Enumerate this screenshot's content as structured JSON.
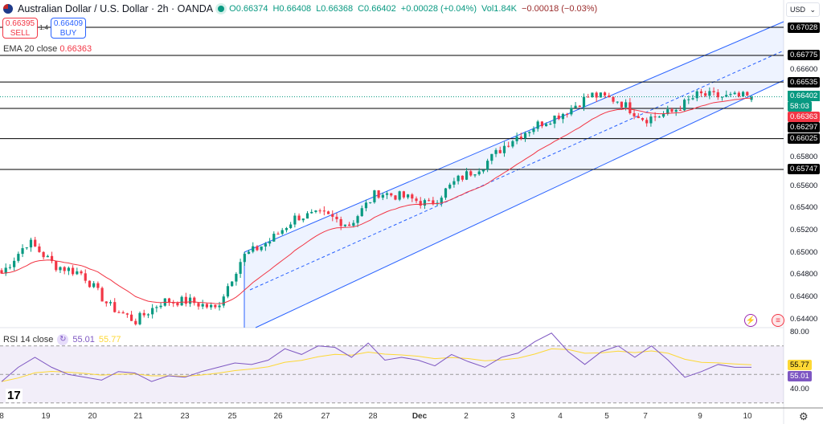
{
  "header": {
    "title": "Australian Dollar / U.S. Dollar · 2h · OANDA",
    "open": "O0.66374",
    "high": "H0.66408",
    "low": "L0.66368",
    "close": "C0.66402",
    "change": "+0.00028 (+0.04%)",
    "volume": "Vol1.84K",
    "vol_change": "−0.00018 (−0.03%)"
  },
  "trade": {
    "sell_price": "0.66395",
    "sell_label": "SELL",
    "spread": "1.4",
    "buy_price": "0.66409",
    "buy_label": "BUY"
  },
  "ema": {
    "label": "EMA 20 close",
    "value": "0.66363"
  },
  "rsi": {
    "label": "RSI 14 close",
    "value": "55.01",
    "ma_value": "55.77",
    "axis": [
      "80.00",
      "40.00"
    ]
  },
  "currency": "USD",
  "price_axis": [
    "0.66600",
    "0.65800",
    "0.65600",
    "0.65400",
    "0.65200",
    "0.65000",
    "0.64800",
    "0.64600",
    "0.64400"
  ],
  "level_labels": [
    "0.67028",
    "0.66775",
    "0.66535",
    "0.66297",
    "0.66025",
    "0.65747"
  ],
  "last_price": {
    "value": "0.66402",
    "countdown": "58:03"
  },
  "ema_label": "0.66363",
  "x_labels": [
    "8",
    "19",
    "20",
    "21",
    "23",
    "25",
    "26",
    "27",
    "28",
    "Dec",
    "2",
    "3",
    "4",
    "5",
    "7",
    "9",
    "10"
  ],
  "colors": {
    "up": "#089981",
    "down": "#f23645",
    "ema": "#f23645",
    "channel": "#2962ff",
    "rsi": "#7e57c2",
    "rsi_ma": "#fdd835"
  },
  "chart_data": {
    "type": "candlestick",
    "symbol": "AUDUSD",
    "interval": "2h",
    "ylim": [
      0.6432,
      0.6712
    ],
    "horizontal_levels": [
      0.67028,
      0.66775,
      0.66535,
      0.66297,
      0.66025,
      0.65747
    ],
    "approx_close_path": [
      0.6481,
      0.651,
      0.6488,
      0.6481,
      0.6452,
      0.6438,
      0.6456,
      0.6456,
      0.6449,
      0.6496,
      0.651,
      0.6532,
      0.6534,
      0.6525,
      0.6554,
      0.655,
      0.6543,
      0.6565,
      0.6579,
      0.6601,
      0.6615,
      0.6626,
      0.6642,
      0.6637,
      0.662,
      0.6626,
      0.6642,
      0.664,
      0.66402
    ],
    "rsi_path": [
      45,
      55,
      62,
      55,
      50,
      48,
      46,
      52,
      51,
      45,
      49,
      48,
      52,
      55,
      58,
      57,
      60,
      68,
      64,
      70,
      69,
      62,
      72,
      60,
      62,
      60,
      56,
      64,
      59,
      55,
      62,
      65,
      73,
      79,
      66,
      57,
      66,
      70,
      62,
      70,
      60,
      48,
      52,
      57,
      55,
      55
    ],
    "rsi_levels": [
      70,
      50,
      30
    ]
  }
}
